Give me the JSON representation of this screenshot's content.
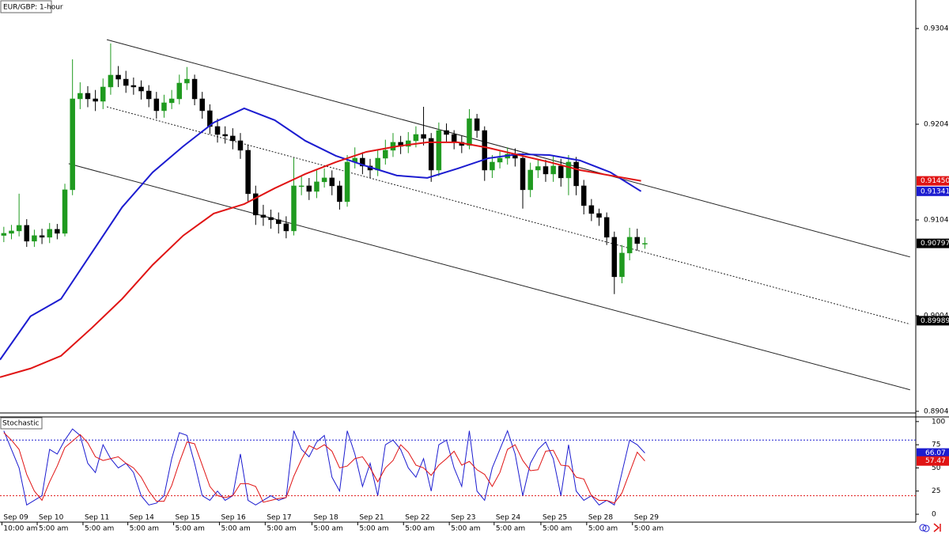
{
  "chart_data": [
    {
      "type": "candlestick",
      "title": "EUR/GBP: 1-hour",
      "x": [
        2,
        6,
        10,
        14,
        18,
        22,
        26,
        30,
        34,
        38,
        42,
        46,
        50,
        54,
        58,
        62,
        66,
        70,
        74,
        78,
        82,
        86,
        90,
        94,
        98,
        102,
        106,
        110,
        114,
        118,
        122,
        126,
        130,
        134,
        138,
        142,
        146,
        150,
        154,
        158,
        162,
        166,
        170,
        174,
        178,
        182,
        186,
        190,
        194,
        198,
        202,
        206,
        210,
        214,
        218,
        222,
        226,
        230,
        234,
        238,
        242,
        246,
        250,
        254,
        258,
        262,
        266,
        270,
        274,
        278,
        282,
        286,
        290,
        294,
        298,
        302,
        306,
        310,
        314,
        318,
        322,
        326,
        330,
        334,
        338
      ],
      "open": [
        0.9088,
        0.90902,
        0.90927,
        0.90985,
        0.9082,
        0.90878,
        0.90861,
        0.90944,
        0.90902,
        0.91357,
        0.92307,
        0.92365,
        0.92307,
        0.92282,
        0.92431,
        0.92555,
        0.92513,
        0.92447,
        0.92431,
        0.92389,
        0.92307,
        0.92183,
        0.92266,
        0.92307,
        0.92472,
        0.92513,
        0.92307,
        0.92183,
        0.92018,
        0.91935,
        0.91919,
        0.91869,
        0.9177,
        0.91316,
        0.91093,
        0.91068,
        0.91043,
        0.91002,
        0.90927,
        0.91398,
        0.91398,
        0.9134,
        0.9144,
        0.91481,
        0.91398,
        0.91233,
        0.91646,
        0.91687,
        0.91605,
        0.91563,
        0.91687,
        0.9177,
        0.91853,
        0.91811,
        0.91869,
        0.91935,
        0.91894,
        0.91563,
        0.91976,
        0.91935,
        0.91853,
        0.9182,
        0.921,
        0.91976,
        0.91563,
        0.91646,
        0.91687,
        0.91729,
        0.91687,
        0.91357,
        0.91563,
        0.916,
        0.91522,
        0.91605,
        0.91481,
        0.91646,
        0.91398,
        0.91192,
        0.91109,
        0.91068,
        0.90861,
        0.90448,
        0.90696,
        0.90861,
        0.90795
      ],
      "high": [
        0.9097,
        0.9099,
        0.91316,
        0.9105,
        0.9094,
        0.9095,
        0.9101,
        0.91,
        0.9142,
        0.9272,
        0.9248,
        0.9244,
        0.924,
        0.9252,
        0.92886,
        0.9265,
        0.926,
        0.9253,
        0.925,
        0.9245,
        0.9238,
        0.9235,
        0.924,
        0.9256,
        0.9264,
        0.9256,
        0.9238,
        0.9225,
        0.921,
        0.9202,
        0.92,
        0.9195,
        0.9183,
        0.914,
        0.912,
        0.9115,
        0.9112,
        0.9108,
        0.9169,
        0.915,
        0.9148,
        0.9156,
        0.9158,
        0.9156,
        0.9145,
        0.9172,
        0.918,
        0.9175,
        0.9168,
        0.9177,
        0.9188,
        0.9195,
        0.9192,
        0.9196,
        0.9202,
        0.92224,
        0.9195,
        0.9206,
        0.9205,
        0.9198,
        0.9192,
        0.922,
        0.9215,
        0.9202,
        0.9172,
        0.9176,
        0.918,
        0.9179,
        0.9174,
        0.9164,
        0.9168,
        0.9167,
        0.9172,
        0.9168,
        0.9172,
        0.917,
        0.9146,
        0.9126,
        0.9116,
        0.9112,
        0.9092,
        0.9078,
        0.9096,
        0.9095,
        0.9086
      ],
      "low": [
        0.9081,
        0.9084,
        0.9087,
        0.9076,
        0.9076,
        0.9079,
        0.908,
        0.9084,
        0.9087,
        0.913,
        0.922,
        0.9222,
        0.9218,
        0.922,
        0.9235,
        0.9243,
        0.9237,
        0.9235,
        0.923,
        0.9222,
        0.921,
        0.9211,
        0.922,
        0.9225,
        0.924,
        0.9224,
        0.921,
        0.9194,
        0.9185,
        0.9184,
        0.9178,
        0.9168,
        0.9123,
        0.9099,
        0.9098,
        0.9095,
        0.909,
        0.9085,
        0.9088,
        0.913,
        0.9125,
        0.9127,
        0.9138,
        0.913,
        0.9115,
        0.9118,
        0.9158,
        0.9152,
        0.9148,
        0.915,
        0.9162,
        0.917,
        0.9173,
        0.9174,
        0.918,
        0.9182,
        0.9144,
        0.915,
        0.9186,
        0.9178,
        0.9174,
        0.9178,
        0.919,
        0.9145,
        0.9148,
        0.9158,
        0.9162,
        0.916,
        0.9116,
        0.9128,
        0.9148,
        0.9144,
        0.9144,
        0.9139,
        0.913,
        0.913,
        0.911,
        0.9103,
        0.9098,
        0.9078,
        0.90267,
        0.9038,
        0.9062,
        0.9072,
        0.9074
      ],
      "close": [
        0.90902,
        0.90927,
        0.90985,
        0.9082,
        0.90878,
        0.90861,
        0.90944,
        0.90902,
        0.91357,
        0.92307,
        0.92365,
        0.92307,
        0.92282,
        0.92431,
        0.92555,
        0.92513,
        0.92447,
        0.92431,
        0.92389,
        0.92307,
        0.92183,
        0.92266,
        0.92307,
        0.92472,
        0.92513,
        0.92307,
        0.92183,
        0.92018,
        0.91935,
        0.91919,
        0.91869,
        0.9177,
        0.91316,
        0.91093,
        0.91068,
        0.91043,
        0.91002,
        0.90927,
        0.91398,
        0.91398,
        0.9134,
        0.9144,
        0.91481,
        0.91398,
        0.91233,
        0.91646,
        0.91687,
        0.91605,
        0.91563,
        0.91687,
        0.9177,
        0.91853,
        0.91811,
        0.91869,
        0.91935,
        0.91894,
        0.91563,
        0.91976,
        0.91935,
        0.91853,
        0.9182,
        0.921,
        0.91976,
        0.91563,
        0.91646,
        0.91687,
        0.91729,
        0.91687,
        0.91357,
        0.91563,
        0.916,
        0.91522,
        0.91605,
        0.91481,
        0.91646,
        0.91398,
        0.91192,
        0.91109,
        0.91068,
        0.90861,
        0.90448,
        0.90696,
        0.90861,
        0.90795,
        0.90797
      ],
      "up_color": "#1f9a1f",
      "down_color": "#000000",
      "xlim": [
        0,
        480
      ],
      "ylim": [
        0.89025,
        0.9334
      ],
      "yticks": [
        0.93042,
        0.92042,
        0.91042,
        0.90042,
        0.89042
      ],
      "lines": [
        {
          "color": "#1c1cd0",
          "x": [
            0,
            16,
            32,
            48,
            64,
            80,
            96,
            112,
            128,
            144,
            160,
            176,
            192,
            208,
            224,
            240,
            256,
            272,
            288,
            304,
            320,
            336
          ],
          "values": [
            0.89581,
            0.90035,
            0.90217,
            0.90696,
            0.91175,
            0.91539,
            0.91811,
            0.92059,
            0.92208,
            0.92084,
            0.91869,
            0.91712,
            0.91605,
            0.91506,
            0.91481,
            0.9158,
            0.91687,
            0.91729,
            0.9172,
            0.91663,
            0.91539,
            0.91341
          ]
        },
        {
          "color": "#e01414",
          "x": [
            0,
            16,
            32,
            48,
            64,
            80,
            96,
            112,
            128,
            144,
            160,
            176,
            192,
            208,
            224,
            240,
            256,
            272,
            288,
            304,
            320,
            336
          ],
          "values": [
            0.89399,
            0.8949,
            0.89622,
            0.89911,
            0.90217,
            0.90572,
            0.90878,
            0.91109,
            0.91208,
            0.91373,
            0.91522,
            0.91646,
            0.91753,
            0.91811,
            0.91853,
            0.91853,
            0.91795,
            0.9172,
            0.91646,
            0.91563,
            0.91506,
            0.9145
          ]
        }
      ],
      "trendlines": [
        {
          "x": [
            56,
            477
          ],
          "values": [
            0.92926,
            0.90655
          ],
          "style": "solid"
        },
        {
          "x": [
            56,
            477
          ],
          "values": [
            0.92224,
            0.89953
          ],
          "style": "dotted"
        },
        {
          "x": [
            36,
            477
          ],
          "values": [
            0.9163,
            0.89267
          ],
          "style": "solid"
        }
      ],
      "price_labels": [
        {
          "value": 0.9145,
          "label": "0.91450",
          "color": "#e01414"
        },
        {
          "value": 0.91341,
          "label": "0.91341",
          "color": "#1c1cd0"
        },
        {
          "value": 0.90797,
          "label": "0.90797",
          "color": "#000000"
        },
        {
          "value": 0.89989,
          "label": "0.89989",
          "color": "#000000"
        }
      ]
    },
    {
      "type": "line",
      "title": "Stochastic",
      "series": [
        {
          "color": "#1c1cd0",
          "values": [
            90,
            70,
            50,
            10,
            15,
            20,
            70,
            65,
            80,
            92,
            85,
            55,
            45,
            75,
            60,
            50,
            55,
            45,
            20,
            10,
            12,
            20,
            60,
            88,
            85,
            55,
            20,
            15,
            25,
            15,
            20,
            65,
            15,
            10,
            15,
            20,
            15,
            18,
            90,
            70,
            62,
            78,
            85,
            40,
            25,
            90,
            65,
            30,
            55,
            20,
            75,
            80,
            70,
            50,
            40,
            60,
            25,
            75,
            80,
            50,
            30,
            90,
            25,
            15,
            50,
            70,
            90,
            65,
            20,
            55,
            70,
            78,
            60,
            20,
            75,
            25,
            15,
            20,
            10,
            15,
            10,
            45,
            80,
            75,
            66.07
          ]
        },
        {
          "color": "#e01414",
          "values": [
            88,
            80,
            70,
            43,
            25,
            15,
            35,
            52,
            72,
            79,
            86,
            77,
            62,
            58,
            60,
            62,
            55,
            50,
            40,
            25,
            14,
            14,
            31,
            56,
            78,
            76,
            53,
            30,
            20,
            18,
            20,
            33,
            33,
            30,
            13,
            15,
            17,
            18,
            41,
            59,
            74,
            70,
            75,
            68,
            50,
            52,
            60,
            62,
            50,
            35,
            50,
            58,
            75,
            67,
            53,
            50,
            42,
            53,
            60,
            68,
            53,
            57,
            48,
            43,
            30,
            45,
            70,
            75,
            58,
            47,
            48,
            68,
            69,
            53,
            52,
            40,
            38,
            20,
            15,
            15,
            12,
            23,
            45,
            67,
            57.47
          ]
        }
      ],
      "ylim": [
        -8.5,
        105
      ],
      "yticks": [
        100,
        75,
        50,
        25,
        0
      ],
      "levels": [
        {
          "value": 80,
          "color": "#1c1cd0"
        },
        {
          "value": 20,
          "color": "#e01414"
        }
      ],
      "xticks": [
        {
          "value": 1,
          "label": "Sep 09"
        },
        {
          "value": 19.5,
          "label": "Sep 10"
        },
        {
          "value": 43.5,
          "label": "Sep 11"
        },
        {
          "value": 67,
          "label": "Sep 14"
        },
        {
          "value": 91,
          "label": "Sep 15"
        },
        {
          "value": 115,
          "label": "Sep 16"
        },
        {
          "value": 139,
          "label": "Sep 17"
        },
        {
          "value": 163.5,
          "label": "Sep 18"
        },
        {
          "value": 187.5,
          "label": "Sep 21"
        },
        {
          "value": 211.5,
          "label": "Sep 22"
        },
        {
          "value": 235.5,
          "label": "Sep 23"
        },
        {
          "value": 259,
          "label": "Sep 24"
        },
        {
          "value": 283.5,
          "label": "Sep 25"
        },
        {
          "value": 307.5,
          "label": "Sep 28"
        },
        {
          "value": 331.5,
          "label": "Sep 29"
        }
      ],
      "xtick_times": [
        "10:00 am",
        "5:00 am",
        "5:00 am",
        "5:00 am",
        "5:00 am",
        "5:00 am",
        "5:00 am",
        "5:00 am",
        "5:00 am",
        "5:00 am",
        "5:00 am",
        "5:00 am",
        "5:00 am",
        "5:00 am",
        "5:00 am"
      ]
    }
  ]
}
